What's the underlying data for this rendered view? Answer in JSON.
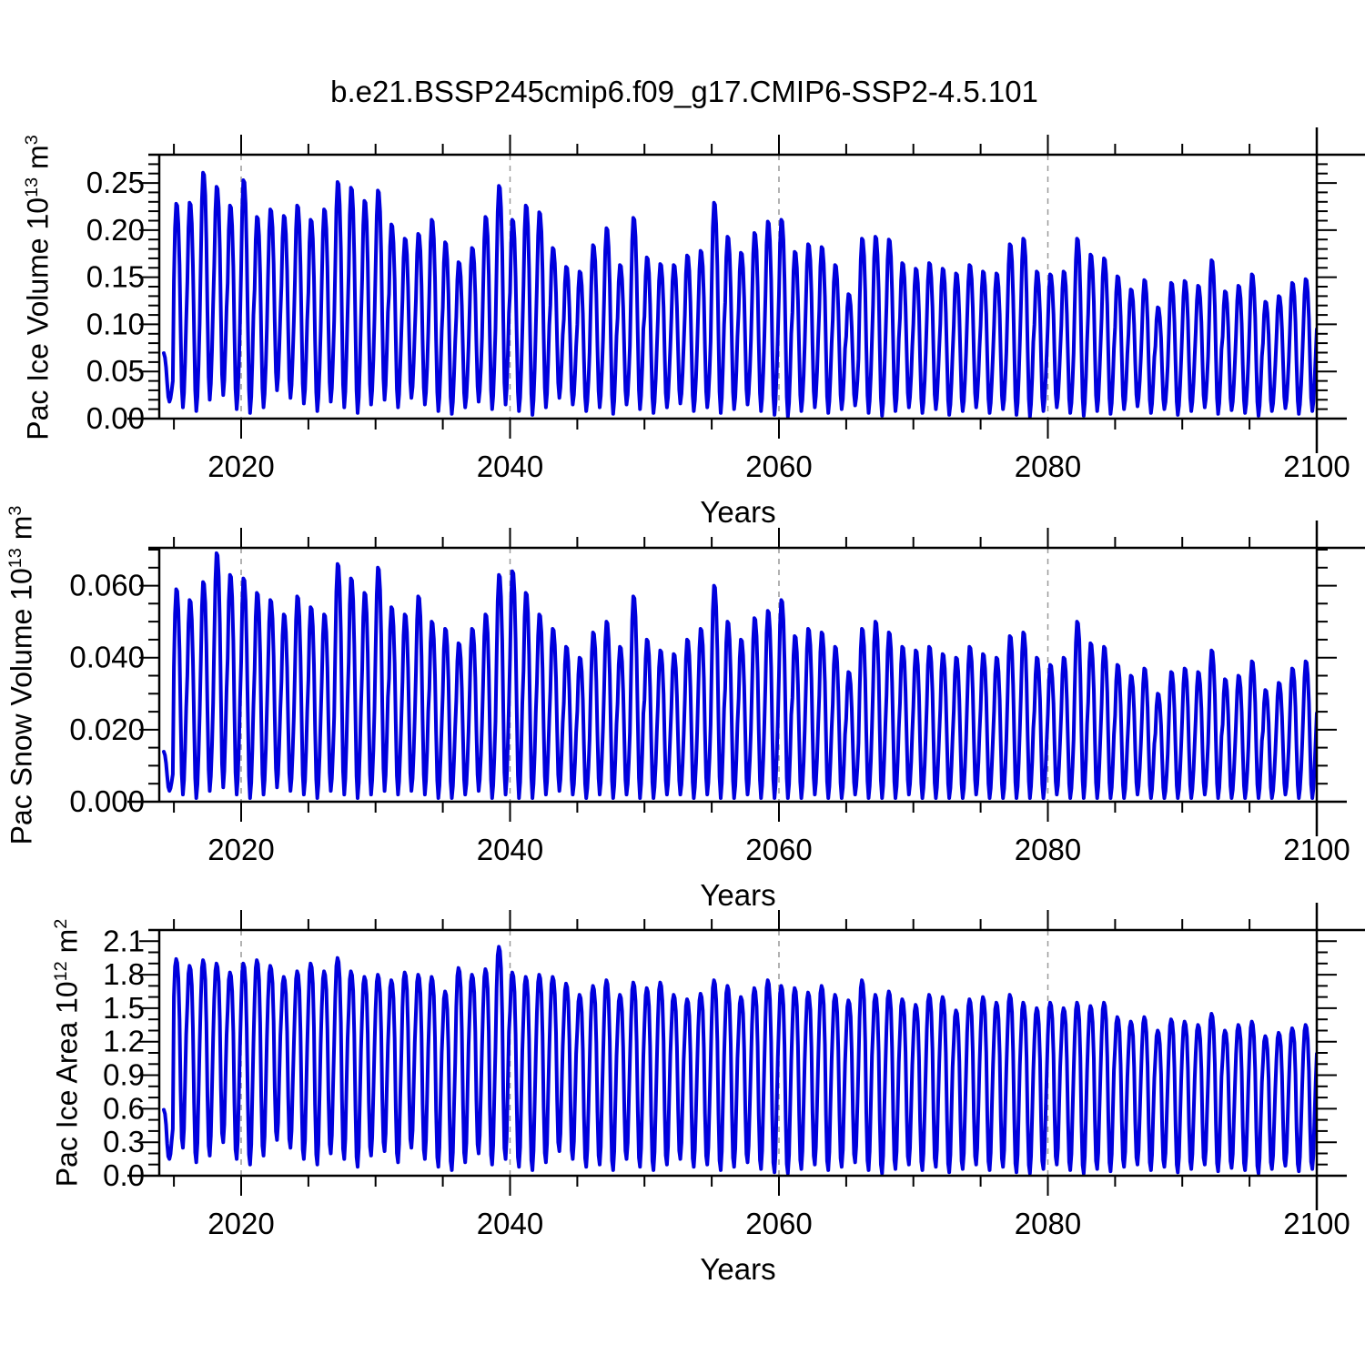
{
  "chart_data": {
    "type": "line",
    "title": "b.e21.BSSP245cmip6.f09_g17.CMIP6-SSP2-4.5.101",
    "xlabel": "Years",
    "line_color": "#0000dd",
    "grid_color": "#999999",
    "axis_color": "#000000",
    "legend": "none",
    "grid": "dashed vertical lines at major x ticks 2020-2080",
    "x": {
      "min": 2013.91,
      "max": 2100,
      "tick_values": [
        2020,
        2040,
        2060,
        2080,
        2100
      ],
      "tick_labels": [
        "2020",
        "2040",
        "2060",
        "2080",
        "2100"
      ],
      "minor_step": 5,
      "grid_values": [
        2020,
        2040,
        2060,
        2080
      ]
    },
    "year_start": 2014,
    "data_start": 2014.25,
    "data_end": 2100.0,
    "note": "monthly seasonal cycle reconstructed from per-year max (March) and min (September) envelopes read off the plot",
    "panels": [
      {
        "id": "ice-volume",
        "ylabel": {
          "prefix": "Pac Ice Volume 10",
          "exp": "13",
          "unit": " m",
          "unit_exp": "3"
        },
        "ymax": 0.28,
        "ytick_values": [
          0.0,
          0.05,
          0.1,
          0.15,
          0.2,
          0.25
        ],
        "ytick_labels": [
          "0.00",
          "0.05",
          "0.10",
          "0.15",
          "0.20",
          "0.25"
        ],
        "yminor_step": 0.01,
        "seasonal_weights": [
          0.62,
          0.88,
          1.0,
          0.99,
          0.9,
          0.7,
          0.38,
          0.1,
          0.0,
          0.07,
          0.22,
          0.42
        ],
        "annual_max": [
          0.07,
          0.228,
          0.229,
          0.261,
          0.246,
          0.226,
          0.253,
          0.214,
          0.222,
          0.215,
          0.226,
          0.211,
          0.222,
          0.251,
          0.245,
          0.231,
          0.242,
          0.206,
          0.191,
          0.196,
          0.211,
          0.187,
          0.166,
          0.181,
          0.214,
          0.247,
          0.211,
          0.226,
          0.219,
          0.181,
          0.161,
          0.156,
          0.184,
          0.202,
          0.163,
          0.213,
          0.171,
          0.164,
          0.163,
          0.173,
          0.178,
          0.229,
          0.193,
          0.176,
          0.197,
          0.209,
          0.211,
          0.177,
          0.185,
          0.182,
          0.163,
          0.132,
          0.191,
          0.193,
          0.19,
          0.165,
          0.159,
          0.165,
          0.159,
          0.154,
          0.163,
          0.156,
          0.154,
          0.185,
          0.191,
          0.156,
          0.153,
          0.156,
          0.191,
          0.174,
          0.17,
          0.151,
          0.137,
          0.147,
          0.118,
          0.144,
          0.146,
          0.141,
          0.168,
          0.135,
          0.141,
          0.153,
          0.124,
          0.13,
          0.144,
          0.148
        ],
        "annual_min": [
          0.018,
          0.012,
          0.008,
          0.02,
          0.025,
          0.01,
          0.006,
          0.012,
          0.03,
          0.022,
          0.016,
          0.008,
          0.018,
          0.012,
          0.006,
          0.015,
          0.02,
          0.012,
          0.022,
          0.015,
          0.008,
          0.005,
          0.012,
          0.018,
          0.01,
          0.015,
          0.008,
          0.004,
          0.012,
          0.022,
          0.015,
          0.008,
          0.012,
          0.005,
          0.015,
          0.01,
          0.006,
          0.012,
          0.016,
          0.008,
          0.012,
          0.006,
          0.01,
          0.015,
          0.008,
          0.004,
          0.002,
          0.008,
          0.012,
          0.006,
          0.01,
          0.014,
          0.006,
          0.003,
          0.008,
          0.012,
          0.006,
          0.01,
          0.004,
          0.008,
          0.012,
          0.006,
          0.01,
          0.004,
          0.002,
          0.008,
          0.012,
          0.006,
          0.003,
          0.008,
          0.005,
          0.01,
          0.013,
          0.006,
          0.01,
          0.004,
          0.008,
          0.012,
          0.005,
          0.009,
          0.006,
          0.003,
          0.008,
          0.011,
          0.005,
          0.008
        ]
      },
      {
        "id": "snow-volume",
        "ylabel": {
          "prefix": "Pac Snow Volume 10",
          "exp": "13",
          "unit": " m",
          "unit_exp": "3"
        },
        "ymax": 0.0705,
        "ytick_values": [
          0.0,
          0.02,
          0.04,
          0.06
        ],
        "ytick_labels": [
          "0.000",
          "0.020",
          "0.040",
          "0.060"
        ],
        "yminor_step": 0.005,
        "seasonal_weights": [
          0.62,
          0.88,
          1.0,
          0.99,
          0.9,
          0.7,
          0.38,
          0.1,
          0.0,
          0.07,
          0.22,
          0.42
        ],
        "annual_max": [
          0.014,
          0.059,
          0.056,
          0.061,
          0.069,
          0.063,
          0.062,
          0.058,
          0.056,
          0.052,
          0.057,
          0.054,
          0.052,
          0.066,
          0.062,
          0.058,
          0.065,
          0.054,
          0.052,
          0.057,
          0.05,
          0.048,
          0.044,
          0.048,
          0.052,
          0.063,
          0.064,
          0.058,
          0.052,
          0.048,
          0.043,
          0.04,
          0.047,
          0.05,
          0.043,
          0.057,
          0.045,
          0.042,
          0.041,
          0.045,
          0.048,
          0.06,
          0.05,
          0.045,
          0.051,
          0.053,
          0.056,
          0.046,
          0.048,
          0.047,
          0.043,
          0.036,
          0.048,
          0.05,
          0.047,
          0.043,
          0.042,
          0.043,
          0.041,
          0.04,
          0.043,
          0.041,
          0.04,
          0.046,
          0.047,
          0.04,
          0.038,
          0.04,
          0.05,
          0.044,
          0.043,
          0.038,
          0.035,
          0.037,
          0.03,
          0.036,
          0.037,
          0.036,
          0.042,
          0.034,
          0.035,
          0.039,
          0.031,
          0.033,
          0.037,
          0.039
        ],
        "annual_min": [
          0.003,
          0.002,
          0.001,
          0.003,
          0.004,
          0.002,
          0.001,
          0.002,
          0.004,
          0.003,
          0.002,
          0.001,
          0.003,
          0.002,
          0.001,
          0.002,
          0.003,
          0.002,
          0.003,
          0.002,
          0.001,
          0.001,
          0.002,
          0.003,
          0.001,
          0.002,
          0.001,
          0.001,
          0.002,
          0.003,
          0.002,
          0.001,
          0.002,
          0.001,
          0.002,
          0.001,
          0.001,
          0.002,
          0.002,
          0.001,
          0.002,
          0.001,
          0.001,
          0.002,
          0.001,
          0.001,
          0.001,
          0.001,
          0.002,
          0.001,
          0.001,
          0.002,
          0.001,
          0.001,
          0.001,
          0.002,
          0.001,
          0.001,
          0.001,
          0.001,
          0.002,
          0.001,
          0.001,
          0.001,
          0.001,
          0.001,
          0.002,
          0.001,
          0.001,
          0.001,
          0.001,
          0.001,
          0.002,
          0.001,
          0.001,
          0.001,
          0.001,
          0.002,
          0.001,
          0.001,
          0.001,
          0.001,
          0.001,
          0.002,
          0.001,
          0.001
        ]
      },
      {
        "id": "ice-area",
        "ylabel": {
          "prefix": "Pac Ice Area 10",
          "exp": "12",
          "unit": " m",
          "unit_exp": "2"
        },
        "ymax": 2.2,
        "ytick_values": [
          0.0,
          0.3,
          0.6,
          0.9,
          1.2,
          1.5,
          1.8,
          2.1
        ],
        "ytick_labels": [
          "0.0",
          "0.3",
          "0.6",
          "0.9",
          "1.2",
          "1.5",
          "1.8",
          "2.1"
        ],
        "yminor_step": 0.1,
        "seasonal_weights": [
          0.8,
          0.96,
          1.0,
          0.98,
          0.9,
          0.68,
          0.3,
          0.05,
          0.0,
          0.1,
          0.35,
          0.6
        ],
        "annual_max": [
          0.6,
          1.94,
          1.88,
          1.93,
          1.9,
          1.82,
          1.9,
          1.93,
          1.88,
          1.78,
          1.83,
          1.9,
          1.83,
          1.95,
          1.83,
          1.78,
          1.8,
          1.75,
          1.82,
          1.8,
          1.78,
          1.65,
          1.86,
          1.8,
          1.85,
          2.05,
          1.82,
          1.78,
          1.8,
          1.78,
          1.72,
          1.62,
          1.7,
          1.75,
          1.62,
          1.73,
          1.68,
          1.73,
          1.62,
          1.58,
          1.63,
          1.75,
          1.7,
          1.6,
          1.68,
          1.75,
          1.7,
          1.68,
          1.64,
          1.7,
          1.62,
          1.57,
          1.75,
          1.62,
          1.65,
          1.58,
          1.53,
          1.62,
          1.6,
          1.48,
          1.58,
          1.6,
          1.55,
          1.62,
          1.55,
          1.5,
          1.55,
          1.5,
          1.55,
          1.52,
          1.55,
          1.42,
          1.38,
          1.42,
          1.3,
          1.4,
          1.38,
          1.35,
          1.45,
          1.3,
          1.35,
          1.38,
          1.25,
          1.28,
          1.32,
          1.35
        ],
        "annual_min": [
          0.15,
          0.25,
          0.12,
          0.18,
          0.3,
          0.15,
          0.1,
          0.18,
          0.32,
          0.25,
          0.15,
          0.1,
          0.2,
          0.15,
          0.08,
          0.18,
          0.22,
          0.12,
          0.25,
          0.15,
          0.08,
          0.05,
          0.12,
          0.2,
          0.1,
          0.15,
          0.08,
          0.05,
          0.12,
          0.22,
          0.15,
          0.08,
          0.1,
          0.05,
          0.15,
          0.08,
          0.05,
          0.1,
          0.15,
          0.08,
          0.1,
          0.05,
          0.08,
          0.12,
          0.06,
          0.03,
          0.02,
          0.06,
          0.1,
          0.05,
          0.08,
          0.12,
          0.05,
          0.02,
          0.06,
          0.1,
          0.05,
          0.08,
          0.03,
          0.06,
          0.1,
          0.05,
          0.08,
          0.03,
          0.02,
          0.06,
          0.1,
          0.05,
          0.02,
          0.06,
          0.04,
          0.08,
          0.1,
          0.05,
          0.08,
          0.03,
          0.06,
          0.1,
          0.04,
          0.07,
          0.05,
          0.02,
          0.06,
          0.09,
          0.04,
          0.06
        ]
      }
    ]
  }
}
